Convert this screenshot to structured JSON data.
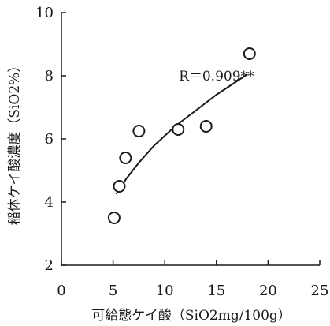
{
  "chart_data": {
    "type": "scatter",
    "title": "",
    "xlabel": "可給態ケイ酸（SiO2mg/100g）",
    "ylabel": "稲体ケイ酸濃度（SiO2%）",
    "xlim": [
      0,
      25
    ],
    "ylim": [
      2,
      10
    ],
    "xticks": [
      0,
      5,
      10,
      15,
      20,
      25
    ],
    "yticks": [
      2,
      4,
      6,
      8,
      10
    ],
    "xtick_labels": [
      "0",
      "5",
      "10",
      "15",
      "20",
      "25"
    ],
    "ytick_labels": [
      "2",
      "4",
      "6",
      "8",
      "10"
    ],
    "grid": false,
    "legend": "none",
    "marker": "open-circle",
    "points": [
      {
        "x": 5.1,
        "y": 3.5
      },
      {
        "x": 5.6,
        "y": 4.5
      },
      {
        "x": 6.2,
        "y": 5.4
      },
      {
        "x": 7.5,
        "y": 6.25
      },
      {
        "x": 11.3,
        "y": 6.3
      },
      {
        "x": 14.0,
        "y": 6.4
      },
      {
        "x": 18.2,
        "y": 8.7
      }
    ],
    "trendline": {
      "type": "logarithmic",
      "x_range": [
        5.3,
        18.0
      ],
      "points": [
        {
          "x": 5.3,
          "y": 4.25
        },
        {
          "x": 6.3,
          "y": 4.75
        },
        {
          "x": 7.5,
          "y": 5.25
        },
        {
          "x": 9.0,
          "y": 5.8
        },
        {
          "x": 11.0,
          "y": 6.4
        },
        {
          "x": 13.0,
          "y": 6.9
        },
        {
          "x": 15.0,
          "y": 7.4
        },
        {
          "x": 18.0,
          "y": 8.05
        }
      ]
    },
    "annotations": [
      {
        "text": "R＝0.909**",
        "x": 15.0,
        "y": 8.0
      }
    ],
    "colors": {
      "ink": "#1a1a1a",
      "background": "#ffffff"
    }
  }
}
